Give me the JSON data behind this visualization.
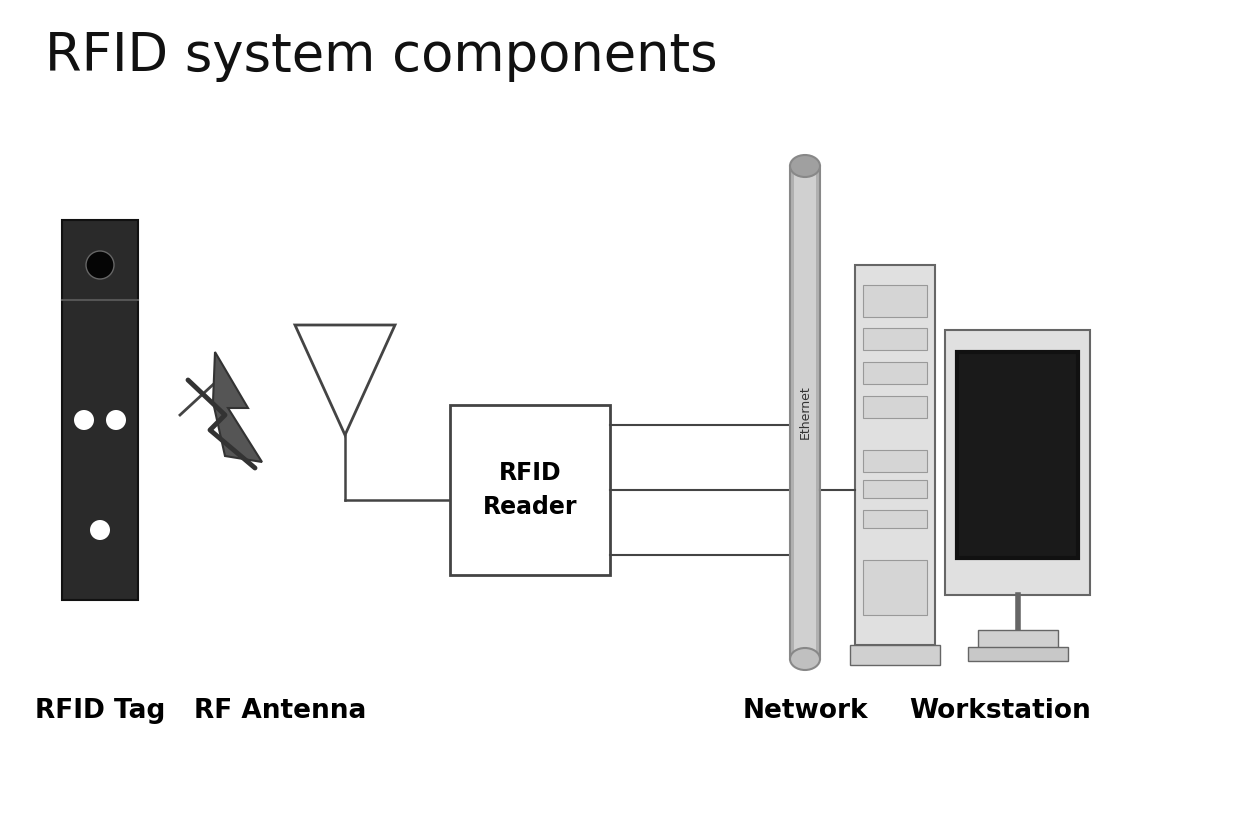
{
  "title": "RFID system components",
  "title_fontsize": 38,
  "background_color": "#ffffff",
  "labels": {
    "rfid_tag": "RFID Tag",
    "rf_antenna": "RF Antenna",
    "rfid_reader": "RFID\nReader",
    "network": "Network",
    "workstation": "Workstation",
    "ethernet": "Ethernet"
  },
  "label_fontsize": 19,
  "colors": {
    "dark_gray": "#444444",
    "medium_gray": "#888888",
    "light_gray": "#cccccc",
    "cable_gray": "#b0b0b0",
    "black": "#111111",
    "white": "#ffffff",
    "tag_body": "#2a2a2a",
    "tower_fill": "#e0e0e0",
    "monitor_fill": "#e0e0e0"
  }
}
